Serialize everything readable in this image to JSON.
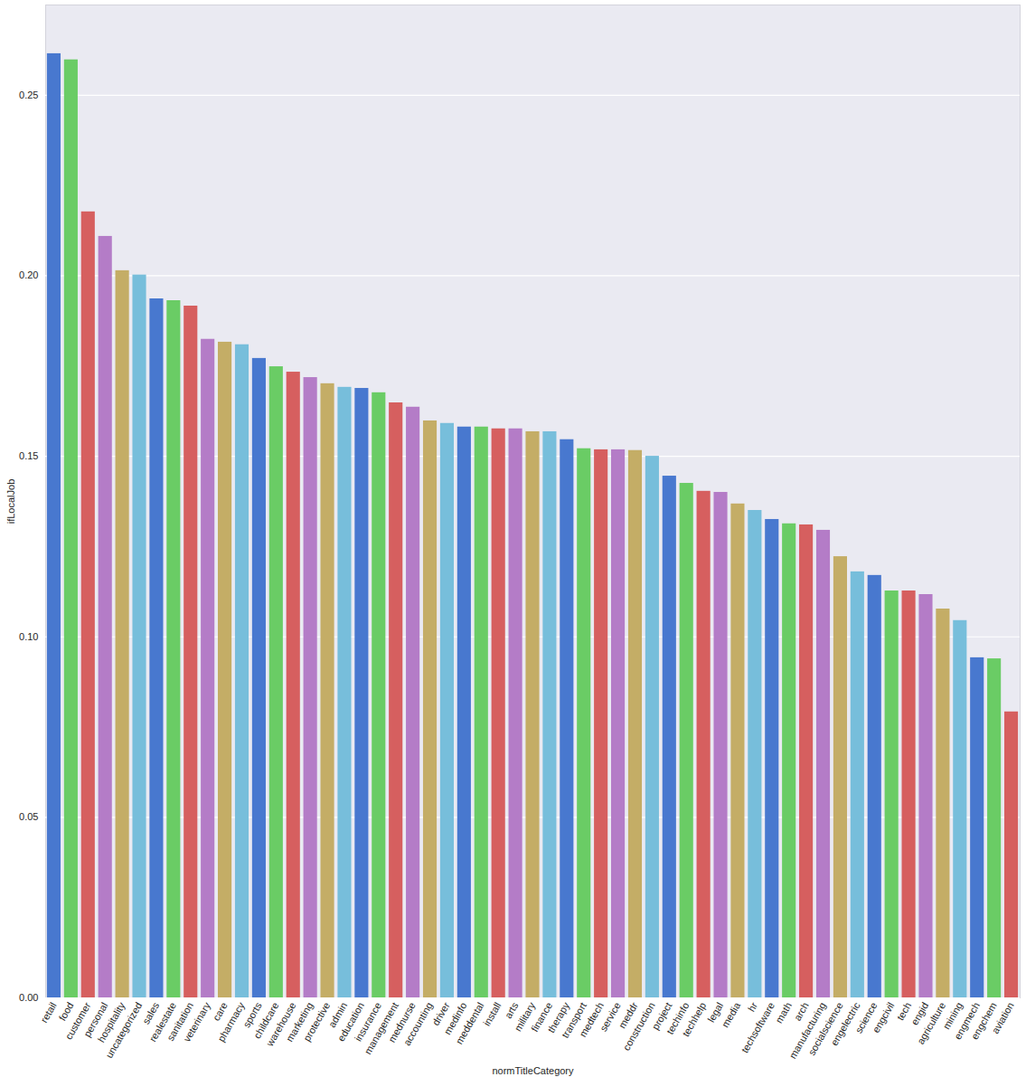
{
  "chart_data": {
    "type": "bar",
    "x_label": "normTitleCategory",
    "y_label": "ifLocalJob",
    "categories": [
      "retail",
      "food",
      "customer",
      "personal",
      "hospitality",
      "uncategorized",
      "sales",
      "realestate",
      "sanitation",
      "veterinary",
      "care",
      "pharmacy",
      "sports",
      "childcare",
      "warehouse",
      "marketing",
      "protective",
      "admin",
      "education",
      "insurance",
      "management",
      "mednurse",
      "accounting",
      "driver",
      "medinfo",
      "meddental",
      "install",
      "arts",
      "military",
      "finance",
      "therapy",
      "transport",
      "medtech",
      "service",
      "meddr",
      "construction",
      "project",
      "techinfo",
      "techhelp",
      "legal",
      "media",
      "hr",
      "techsoftware",
      "math",
      "arch",
      "manufacturing",
      "socialscience",
      "engelectric",
      "science",
      "engcivil",
      "tech",
      "engid",
      "agriculture",
      "mining",
      "engmech",
      "engchem",
      "aviation"
    ],
    "values": [
      0.2615,
      0.2598,
      0.2177,
      0.2109,
      0.2014,
      0.2002,
      0.1936,
      0.1931,
      0.1916,
      0.1824,
      0.1816,
      0.1809,
      0.1771,
      0.1748,
      0.1733,
      0.1718,
      0.1701,
      0.1691,
      0.1688,
      0.1676,
      0.1648,
      0.1636,
      0.1598,
      0.1591,
      0.1581,
      0.1581,
      0.1576,
      0.1576,
      0.1568,
      0.1568,
      0.1546,
      0.1521,
      0.1518,
      0.1518,
      0.1516,
      0.15,
      0.1445,
      0.1425,
      0.1403,
      0.14,
      0.1368,
      0.135,
      0.1325,
      0.1313,
      0.131,
      0.1295,
      0.1222,
      0.118,
      0.117,
      0.1127,
      0.1127,
      0.1117,
      0.1077,
      0.1045,
      0.0942,
      0.0939,
      0.0792
    ],
    "colors": [
      "#4878CF",
      "#6ACC65",
      "#D65F5F",
      "#B47CC7",
      "#C4AD66",
      "#77BEDB",
      "#4878CF",
      "#6ACC65",
      "#D65F5F",
      "#B47CC7",
      "#C4AD66",
      "#77BEDB",
      "#4878CF",
      "#6ACC65",
      "#D65F5F",
      "#B47CC7",
      "#C4AD66",
      "#77BEDB",
      "#4878CF",
      "#6ACC65",
      "#D65F5F",
      "#B47CC7",
      "#C4AD66",
      "#77BEDB",
      "#4878CF",
      "#6ACC65",
      "#D65F5F",
      "#B47CC7",
      "#C4AD66",
      "#77BEDB",
      "#4878CF",
      "#6ACC65",
      "#D65F5F",
      "#B47CC7",
      "#C4AD66",
      "#77BEDB",
      "#4878CF",
      "#6ACC65",
      "#D65F5F",
      "#B47CC7",
      "#C4AD66",
      "#77BEDB",
      "#4878CF",
      "#6ACC65",
      "#D65F5F",
      "#B47CC7",
      "#C4AD66",
      "#77BEDB",
      "#4878CF",
      "#6ACC65",
      "#D65F5F",
      "#B47CC7",
      "#C4AD66",
      "#77BEDB",
      "#4878CF",
      "#6ACC65",
      "#D65F5F"
    ],
    "ylim": [
      0,
      0.275
    ],
    "yticks": [
      {
        "value": 0,
        "label": "0.00"
      },
      {
        "value": 0.05,
        "label": "0.05"
      },
      {
        "value": 0.1,
        "label": "0.10"
      },
      {
        "value": 0.15,
        "label": "0.15"
      },
      {
        "value": 0.2,
        "label": "0.20"
      },
      {
        "value": 0.25,
        "label": "0.25"
      }
    ],
    "grid": true
  }
}
